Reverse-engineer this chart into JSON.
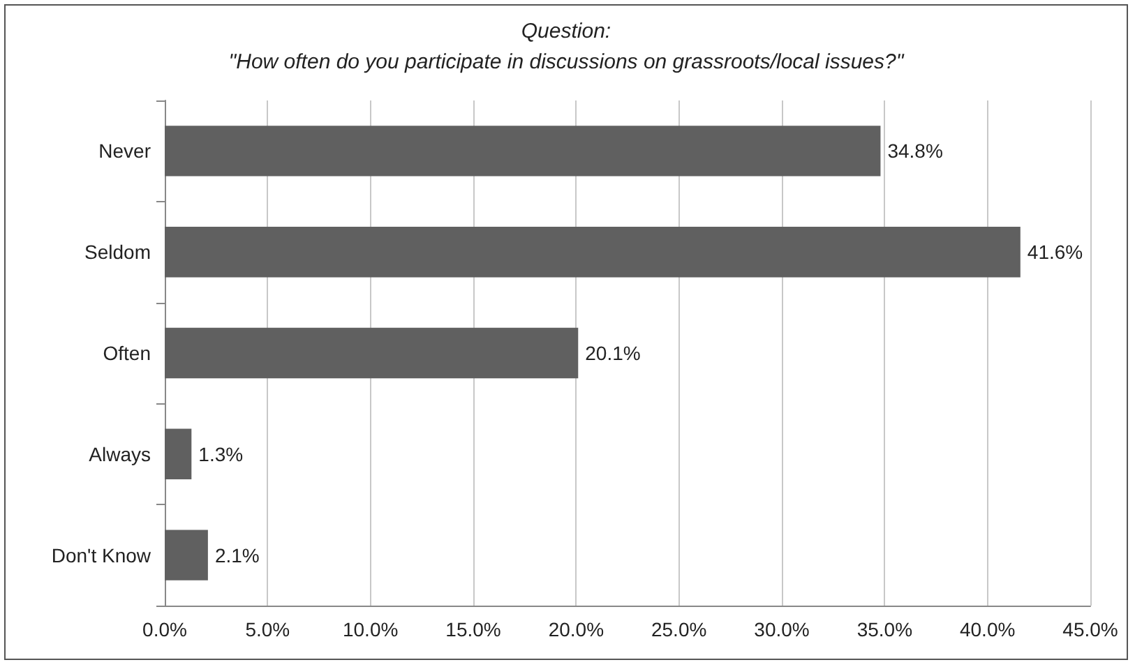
{
  "chart_data": {
    "type": "bar",
    "orientation": "horizontal",
    "title": "Question:",
    "subtitle": "\"How often do you participate in discussions on grassroots/local issues?\"",
    "categories": [
      "Never",
      "Seldom",
      "Often",
      "Always",
      "Don't Know"
    ],
    "values": [
      34.8,
      41.6,
      20.1,
      1.3,
      2.1
    ],
    "value_labels": [
      "34.8%",
      "41.6%",
      "20.1%",
      "1.3%",
      "2.1%"
    ],
    "color": "#606060",
    "xlim": [
      0,
      45
    ],
    "xticks": [
      {
        "value": 0,
        "label": "0.0%"
      },
      {
        "value": 5,
        "label": "5.0%"
      },
      {
        "value": 10,
        "label": "10.0%"
      },
      {
        "value": 15,
        "label": "15.0%"
      },
      {
        "value": 20,
        "label": "20.0%"
      },
      {
        "value": 25,
        "label": "25.0%"
      },
      {
        "value": 30,
        "label": "30.0%"
      },
      {
        "value": 35,
        "label": "35.0%"
      },
      {
        "value": 40,
        "label": "40.0%"
      },
      {
        "value": 45,
        "label": "45.0%"
      }
    ],
    "grid": "x"
  }
}
